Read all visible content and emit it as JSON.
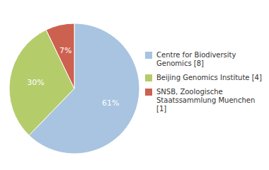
{
  "chart_data": {
    "type": "pie",
    "categories": [
      "Centre for Biodiversity\nGenomics [8]",
      "Beijing Genomics Institute [4]",
      "SNSB, Zoologische\nStaatssammlung Muenchen [1]"
    ],
    "values": [
      61,
      30,
      7
    ],
    "value_labels": [
      "61%",
      "30%",
      "7%"
    ],
    "colors": [
      "#a8c4e0",
      "#b5cc6b",
      "#cd6150"
    ],
    "data_labels": true,
    "legend": "right"
  }
}
